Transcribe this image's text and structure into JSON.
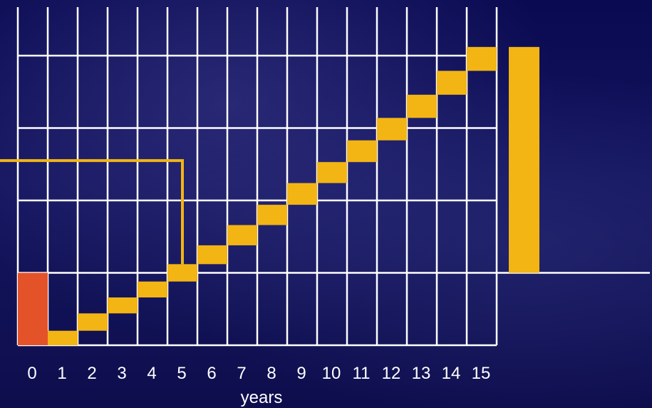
{
  "chart_data": {
    "type": "bar",
    "xlabel": "years",
    "categories": [
      "0",
      "1",
      "2",
      "3",
      "4",
      "5",
      "6",
      "7",
      "8",
      "9",
      "10",
      "11",
      "12",
      "13",
      "14",
      "15"
    ],
    "baseline": 0,
    "ylim": [
      -1,
      4
    ],
    "grid": true,
    "steps": [
      {
        "year": "0",
        "from": -1.0,
        "to": 0.0,
        "color": "#e4522a"
      },
      {
        "year": "1",
        "from": -1.0,
        "to": -0.8,
        "color": "#f2b514"
      },
      {
        "year": "2",
        "from": -0.8,
        "to": -0.56,
        "color": "#f2b514"
      },
      {
        "year": "3",
        "from": -0.56,
        "to": -0.34,
        "color": "#f2b514"
      },
      {
        "year": "4",
        "from": -0.34,
        "to": -0.12,
        "color": "#f2b514"
      },
      {
        "year": "5",
        "from": -0.12,
        "to": 0.12,
        "color": "#f2b514"
      },
      {
        "year": "6",
        "from": 0.12,
        "to": 0.38,
        "color": "#f2b514"
      },
      {
        "year": "7",
        "from": 0.38,
        "to": 0.66,
        "color": "#f2b514"
      },
      {
        "year": "8",
        "from": 0.66,
        "to": 0.94,
        "color": "#f2b514"
      },
      {
        "year": "9",
        "from": 0.94,
        "to": 1.24,
        "color": "#f2b514"
      },
      {
        "year": "10",
        "from": 1.24,
        "to": 1.53,
        "color": "#f2b514"
      },
      {
        "year": "11",
        "from": 1.53,
        "to": 1.83,
        "color": "#f2b514"
      },
      {
        "year": "12",
        "from": 1.83,
        "to": 2.14,
        "color": "#f2b514"
      },
      {
        "year": "13",
        "from": 2.14,
        "to": 2.46,
        "color": "#f2b514"
      },
      {
        "year": "14",
        "from": 2.46,
        "to": 2.79,
        "color": "#f2b514"
      },
      {
        "year": "15",
        "from": 2.79,
        "to": 3.12,
        "color": "#f2b514"
      }
    ],
    "total": {
      "from": 0.0,
      "to": 3.12,
      "color": "#f2b514"
    },
    "marker": {
      "year": "5",
      "level": 1.55,
      "color": "#f2b514"
    },
    "colors": {
      "grid": "#ffffff",
      "initial": "#e4522a",
      "step": "#f2b514",
      "background": "#0b0b4a"
    }
  }
}
